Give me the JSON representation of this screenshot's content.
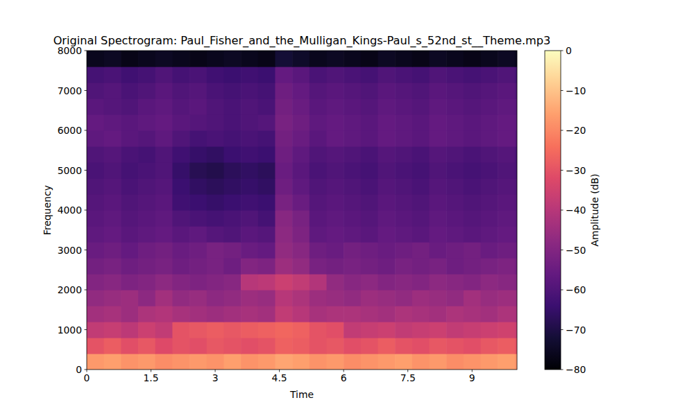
{
  "chart_data": {
    "type": "heatmap",
    "title": "Original Spectrogram: Paul_Fisher_and_the_Mulligan_Kings-Paul_s_52nd_st__Theme.mp3",
    "x_label": "Time",
    "y_label": "Frequency",
    "z_label": "Amplitude (dB)",
    "xlim": [
      0,
      10.05
    ],
    "xticks": [
      0,
      1.5,
      3,
      4.5,
      6,
      7.5,
      9
    ],
    "ylim": [
      0,
      8000
    ],
    "yticks": [
      0,
      1000,
      2000,
      3000,
      4000,
      5000,
      6000,
      7000,
      8000
    ],
    "zlim": [
      -80,
      0
    ],
    "zticks": [
      {
        "value": 0,
        "label": "0"
      },
      {
        "value": -10,
        "label": "−10"
      },
      {
        "value": -20,
        "label": "−20"
      },
      {
        "value": -30,
        "label": "−30"
      },
      {
        "value": -40,
        "label": "−40"
      },
      {
        "value": -50,
        "label": "−50"
      },
      {
        "value": -60,
        "label": "−60"
      },
      {
        "value": -70,
        "label": "−70"
      },
      {
        "value": -80,
        "label": "−80"
      }
    ],
    "x": [
      0.2,
      0.6,
      1.0,
      1.4,
      1.8,
      2.2,
      2.6,
      3.0,
      3.4,
      3.8,
      4.2,
      4.6,
      5.0,
      5.4,
      5.8,
      6.2,
      6.6,
      7.0,
      7.4,
      7.8,
      8.2,
      8.6,
      9.0,
      9.4,
      9.8,
      10.2
    ],
    "y": [
      200,
      600,
      1000,
      1400,
      1800,
      2200,
      2600,
      3000,
      3400,
      3800,
      4200,
      4600,
      5000,
      5400,
      5800,
      6200,
      6600,
      7000,
      7400,
      7800
    ],
    "values": [
      [
        -17,
        -16,
        -18,
        -17,
        -19,
        -18,
        -17,
        -18,
        -16,
        -18,
        -17,
        -15,
        -16,
        -18,
        -17,
        -19,
        -18,
        -17,
        -16,
        -18,
        -17,
        -19,
        -18,
        -17,
        -16,
        -18
      ],
      [
        -30,
        -28,
        -31,
        -29,
        -32,
        -30,
        -31,
        -29,
        -30,
        -31,
        -30,
        -27,
        -28,
        -30,
        -29,
        -31,
        -30,
        -28,
        -30,
        -31,
        -29,
        -30,
        -31,
        -29,
        -28,
        -30
      ],
      [
        -38,
        -37,
        -39,
        -36,
        -38,
        -30,
        -29,
        -28,
        -29,
        -28,
        -27,
        -26,
        -27,
        -30,
        -31,
        -38,
        -37,
        -36,
        -38,
        -37,
        -36,
        -38,
        -37,
        -36,
        -35,
        -37
      ],
      [
        -44,
        -43,
        -45,
        -42,
        -41,
        -43,
        -44,
        -45,
        -44,
        -43,
        -44,
        -38,
        -40,
        -43,
        -42,
        -42,
        -43,
        -44,
        -42,
        -43,
        -44,
        -42,
        -43,
        -44,
        -42,
        -43
      ],
      [
        -47,
        -46,
        -45,
        -48,
        -44,
        -47,
        -46,
        -48,
        -47,
        -45,
        -46,
        -40,
        -42,
        -45,
        -46,
        -47,
        -45,
        -46,
        -47,
        -45,
        -46,
        -47,
        -44,
        -46,
        -45,
        -46
      ],
      [
        -50,
        -49,
        -51,
        -50,
        -48,
        -50,
        -51,
        -50,
        -49,
        -40,
        -39,
        -36,
        -38,
        -41,
        -47,
        -49,
        -48,
        -50,
        -49,
        -50,
        -48,
        -49,
        -50,
        -48,
        -49,
        -50
      ],
      [
        -53,
        -52,
        -54,
        -53,
        -52,
        -54,
        -53,
        -52,
        -54,
        -50,
        -51,
        -45,
        -47,
        -52,
        -53,
        -52,
        -53,
        -54,
        -52,
        -53,
        -52,
        -54,
        -53,
        -52,
        -51,
        -53
      ],
      [
        -55,
        -54,
        -56,
        -54,
        -53,
        -55,
        -54,
        -52,
        -53,
        -55,
        -56,
        -47,
        -49,
        -54,
        -55,
        -53,
        -54,
        -55,
        -54,
        -53,
        -55,
        -54,
        -53,
        -55,
        -54,
        -55
      ],
      [
        -57,
        -56,
        -58,
        -57,
        -56,
        -58,
        -57,
        -59,
        -60,
        -58,
        -59,
        -48,
        -51,
        -57,
        -56,
        -57,
        -58,
        -56,
        -57,
        -58,
        -56,
        -57,
        -58,
        -57,
        -56,
        -57
      ],
      [
        -58,
        -57,
        -59,
        -58,
        -57,
        -60,
        -61,
        -62,
        -61,
        -60,
        -62,
        -49,
        -52,
        -58,
        -57,
        -58,
        -59,
        -57,
        -58,
        -59,
        -57,
        -58,
        -59,
        -58,
        -57,
        -58
      ],
      [
        -59,
        -58,
        -60,
        -59,
        -58,
        -63,
        -64,
        -65,
        -64,
        -63,
        -64,
        -52,
        -55,
        -59,
        -58,
        -59,
        -60,
        -58,
        -59,
        -60,
        -58,
        -59,
        -60,
        -59,
        -58,
        -59
      ],
      [
        -60,
        -59,
        -61,
        -60,
        -59,
        -64,
        -66,
        -67,
        -66,
        -65,
        -66,
        -54,
        -57,
        -60,
        -59,
        -60,
        -61,
        -59,
        -60,
        -61,
        -59,
        -60,
        -61,
        -60,
        -59,
        -60
      ],
      [
        -61,
        -60,
        -62,
        -61,
        -60,
        -65,
        -68,
        -69,
        -67,
        -66,
        -67,
        -55,
        -58,
        -61,
        -60,
        -61,
        -62,
        -60,
        -61,
        -62,
        -60,
        -61,
        -62,
        -61,
        -60,
        -61
      ],
      [
        -60,
        -59,
        -61,
        -62,
        -60,
        -63,
        -65,
        -66,
        -64,
        -63,
        -64,
        -54,
        -57,
        -60,
        -59,
        -60,
        -61,
        -59,
        -60,
        -61,
        -59,
        -60,
        -61,
        -60,
        -59,
        -61
      ],
      [
        -57,
        -56,
        -58,
        -59,
        -57,
        -60,
        -62,
        -61,
        -62,
        -61,
        -62,
        -53,
        -55,
        -58,
        -56,
        -57,
        -58,
        -56,
        -57,
        -58,
        -56,
        -57,
        -58,
        -57,
        -56,
        -58
      ],
      [
        -56,
        -57,
        -58,
        -57,
        -56,
        -58,
        -59,
        -60,
        -61,
        -60,
        -59,
        -52,
        -54,
        -57,
        -56,
        -57,
        -58,
        -56,
        -57,
        -58,
        -56,
        -57,
        -58,
        -57,
        -56,
        -57
      ],
      [
        -58,
        -59,
        -60,
        -58,
        -57,
        -59,
        -58,
        -60,
        -61,
        -60,
        -61,
        -53,
        -55,
        -58,
        -57,
        -58,
        -59,
        -57,
        -58,
        -59,
        -57,
        -58,
        -59,
        -58,
        -57,
        -58
      ],
      [
        -60,
        -59,
        -61,
        -60,
        -58,
        -60,
        -59,
        -61,
        -62,
        -61,
        -62,
        -54,
        -56,
        -59,
        -58,
        -59,
        -60,
        -58,
        -59,
        -60,
        -58,
        -59,
        -60,
        -59,
        -58,
        -60
      ],
      [
        -62,
        -61,
        -63,
        -62,
        -60,
        -62,
        -61,
        -63,
        -64,
        -63,
        -64,
        -56,
        -58,
        -61,
        -60,
        -61,
        -62,
        -60,
        -61,
        -62,
        -60,
        -61,
        -62,
        -61,
        -60,
        -62
      ],
      [
        -76,
        -75,
        -77,
        -76,
        -75,
        -76,
        -77,
        -76,
        -75,
        -76,
        -77,
        -72,
        -74,
        -76,
        -75,
        -76,
        -77,
        -75,
        -76,
        -77,
        -75,
        -76,
        -77,
        -76,
        -75,
        -76
      ]
    ]
  }
}
